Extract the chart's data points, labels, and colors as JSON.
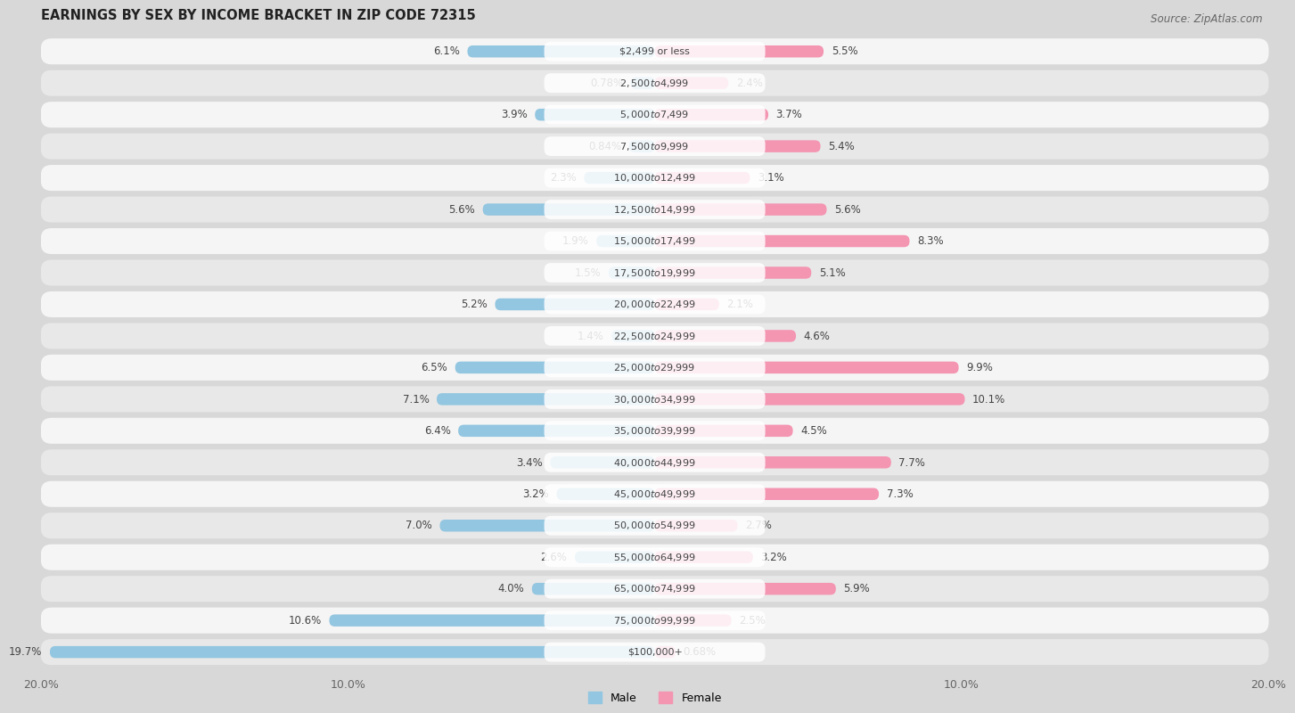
{
  "title": "EARNINGS BY SEX BY INCOME BRACKET IN ZIP CODE 72315",
  "source": "Source: ZipAtlas.com",
  "categories": [
    "$2,499 or less",
    "$2,500 to $4,999",
    "$5,000 to $7,499",
    "$7,500 to $9,999",
    "$10,000 to $12,499",
    "$12,500 to $14,999",
    "$15,000 to $17,499",
    "$17,500 to $19,999",
    "$20,000 to $22,499",
    "$22,500 to $24,999",
    "$25,000 to $29,999",
    "$30,000 to $34,999",
    "$35,000 to $39,999",
    "$40,000 to $44,999",
    "$45,000 to $49,999",
    "$50,000 to $54,999",
    "$55,000 to $64,999",
    "$65,000 to $74,999",
    "$75,000 to $99,999",
    "$100,000+"
  ],
  "male_values": [
    6.1,
    0.78,
    3.9,
    0.84,
    2.3,
    5.6,
    1.9,
    1.5,
    5.2,
    1.4,
    6.5,
    7.1,
    6.4,
    3.4,
    3.2,
    7.0,
    2.6,
    4.0,
    10.6,
    19.7
  ],
  "female_values": [
    5.5,
    2.4,
    3.7,
    5.4,
    3.1,
    5.6,
    8.3,
    5.1,
    2.1,
    4.6,
    9.9,
    10.1,
    4.5,
    7.7,
    7.3,
    2.7,
    3.2,
    5.9,
    2.5,
    0.68
  ],
  "male_color": "#93C6E0",
  "female_color": "#F495B2",
  "male_label": "Male",
  "female_label": "Female",
  "xlim": 20.0,
  "row_color_even": "#f5f5f5",
  "row_color_odd": "#e8e8e8",
  "background_color": "#d8d8d8",
  "title_fontsize": 10.5,
  "source_fontsize": 8.5,
  "label_fontsize": 8.5,
  "tick_fontsize": 9,
  "category_fontsize": 8.0
}
